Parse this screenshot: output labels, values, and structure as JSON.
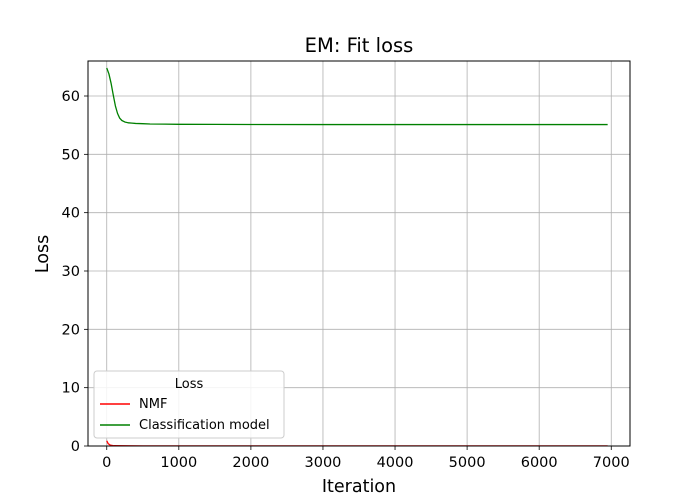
{
  "chart_data": {
    "type": "line",
    "title": "EM: Fit loss",
    "xlabel": "Iteration",
    "ylabel": "Loss",
    "xlim": [
      -260,
      7260
    ],
    "ylim": [
      0,
      66
    ],
    "xticks": [
      0,
      1000,
      2000,
      3000,
      4000,
      5000,
      6000,
      7000
    ],
    "yticks": [
      0,
      10,
      20,
      30,
      40,
      50,
      60
    ],
    "grid": true,
    "legend": {
      "title": "Loss",
      "placement": "lower-left"
    },
    "series": [
      {
        "name": "NMF",
        "color": "#ff0000",
        "x": [
          0,
          20,
          50,
          100,
          500,
          1000,
          2000,
          3000,
          4000,
          5000,
          6000,
          6950
        ],
        "y": [
          0.9,
          0.4,
          0.15,
          0.05,
          0.02,
          0.02,
          0.02,
          0.02,
          0.02,
          0.02,
          0.02,
          0.02
        ]
      },
      {
        "name": "Classification model",
        "color": "#008000",
        "x": [
          0,
          30,
          60,
          90,
          120,
          150,
          180,
          210,
          250,
          300,
          350,
          400,
          500,
          600,
          800,
          1000,
          1500,
          2000,
          3000,
          4000,
          5000,
          6000,
          6950
        ],
        "y": [
          64.8,
          63.8,
          62.2,
          60.2,
          58.3,
          57.0,
          56.2,
          55.8,
          55.55,
          55.4,
          55.35,
          55.3,
          55.25,
          55.2,
          55.18,
          55.15,
          55.13,
          55.12,
          55.1,
          55.1,
          55.1,
          55.1,
          55.1
        ]
      }
    ]
  }
}
